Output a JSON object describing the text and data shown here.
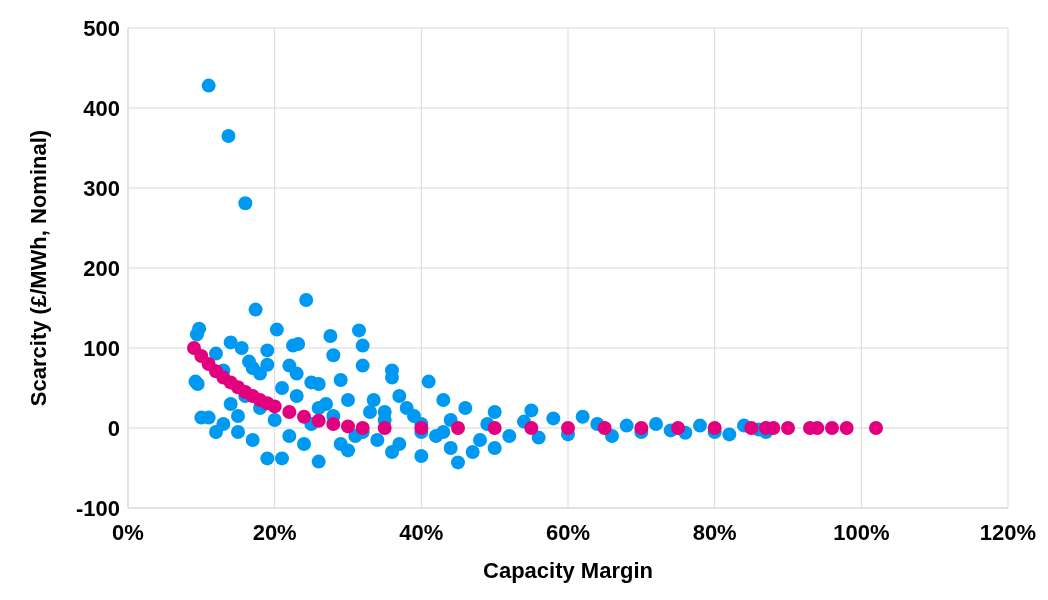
{
  "chart_data": {
    "type": "scatter",
    "xlabel": "Capacity Margin",
    "ylabel": "Scarcity (£/MWh, Nominal)",
    "xlim": [
      0,
      1.2
    ],
    "xticks": [
      {
        "value": 0,
        "label": "0%"
      },
      {
        "value": 0.2,
        "label": "20%"
      },
      {
        "value": 0.4,
        "label": "40%"
      },
      {
        "value": 0.6,
        "label": "60%"
      },
      {
        "value": 0.8,
        "label": "80%"
      },
      {
        "value": 1,
        "label": "100%"
      },
      {
        "value": 1.2,
        "label": "120%"
      }
    ],
    "ylim": [
      -100,
      500
    ],
    "yticks": [
      -100,
      0,
      100,
      200,
      300,
      400,
      500
    ],
    "grid": true,
    "marker": "circle",
    "series": [
      {
        "color": "#0099f2",
        "x": [
          0.097,
          0.094,
          0.092,
          0.095,
          0.1,
          0.11,
          0.137,
          0.16,
          0.174,
          0.243,
          0.203,
          0.12,
          0.14,
          0.155,
          0.165,
          0.13,
          0.17,
          0.18,
          0.19,
          0.19,
          0.225,
          0.232,
          0.22,
          0.23,
          0.25,
          0.26,
          0.276,
          0.28,
          0.315,
          0.32,
          0.32,
          0.36,
          0.36,
          0.41,
          0.29,
          0.35,
          0.39,
          0.43,
          0.46,
          0.5,
          0.55,
          0.58,
          0.62,
          0.48,
          0.44,
          0.45,
          0.4,
          0.36,
          0.3,
          0.26,
          0.21,
          0.19,
          0.15,
          0.12,
          0.11,
          0.13,
          0.14,
          0.16,
          0.18,
          0.2,
          0.22,
          0.24,
          0.25,
          0.27,
          0.28,
          0.3,
          0.31,
          0.33,
          0.34,
          0.35,
          0.37,
          0.38,
          0.4,
          0.42,
          0.44,
          0.47,
          0.49,
          0.52,
          0.54,
          0.56,
          0.6,
          0.64,
          0.66,
          0.68,
          0.7,
          0.72,
          0.74,
          0.76,
          0.78,
          0.8,
          0.82,
          0.84,
          0.86,
          0.87,
          0.15,
          0.17,
          0.21,
          0.23,
          0.26,
          0.29,
          0.32,
          0.335,
          0.37,
          0.4,
          0.43,
          0.5
        ],
        "values": [
          124,
          117,
          58,
          55,
          13,
          428,
          365,
          281,
          148,
          160,
          123,
          93,
          107,
          100,
          83,
          72,
          75,
          68,
          97,
          79,
          103,
          105,
          78,
          68,
          57,
          55,
          115,
          91,
          122,
          103,
          78,
          72,
          63,
          58,
          60,
          20,
          15,
          35,
          25,
          20,
          22,
          12,
          14,
          -15,
          -25,
          -43,
          -35,
          -30,
          -28,
          -42,
          -38,
          -38,
          -5,
          -5,
          13,
          5,
          30,
          40,
          25,
          10,
          -10,
          -20,
          5,
          30,
          15,
          35,
          -10,
          20,
          -15,
          10,
          -20,
          25,
          5,
          -10,
          10,
          -30,
          5,
          -10,
          8,
          -12,
          -8,
          5,
          -10,
          3,
          -5,
          5,
          -3,
          -6,
          3,
          -5,
          -8,
          3,
          -2,
          -5,
          15,
          -15,
          50,
          40,
          25,
          -20,
          -5,
          35,
          40,
          -5,
          -5,
          -25
        ]
      },
      {
        "color": "#e2007f",
        "x": [
          0.09,
          0.1,
          0.11,
          0.12,
          0.13,
          0.14,
          0.15,
          0.16,
          0.17,
          0.18,
          0.19,
          0.2,
          0.22,
          0.24,
          0.26,
          0.28,
          0.3,
          0.32,
          0.35,
          0.4,
          0.45,
          0.5,
          0.55,
          0.6,
          0.65,
          0.7,
          0.75,
          0.8,
          0.85,
          0.87,
          0.88,
          0.9,
          0.93,
          0.94,
          0.96,
          0.98,
          1.02
        ],
        "values": [
          100,
          90,
          80,
          71,
          63,
          57,
          51,
          45,
          40,
          35,
          31,
          27,
          20,
          14,
          9,
          5,
          2,
          0,
          0,
          0,
          0,
          0,
          0,
          0,
          0,
          0,
          0,
          0,
          0,
          0,
          0,
          0,
          0,
          0,
          0,
          0,
          0
        ]
      }
    ]
  }
}
